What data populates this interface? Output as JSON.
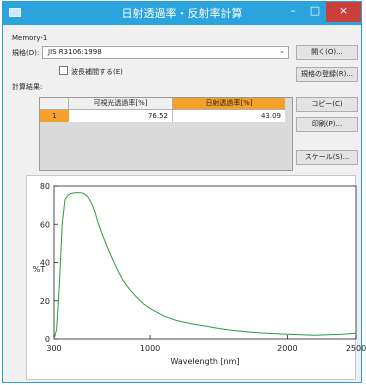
{
  "window": {
    "title": "日射透過率・反射率計算",
    "controls": {
      "minimize": "–",
      "maximize": "□",
      "close": "×"
    }
  },
  "memory_label": "Memory-1",
  "spec": {
    "label": "規格(D):",
    "value": "JIS R3106:1998"
  },
  "checkbox": {
    "label": "波長補間する(E)",
    "checked": false
  },
  "results_label": "計算結果:",
  "table": {
    "columns": [
      "可視光透過率[%]",
      "日射透過率[%]"
    ],
    "rows": [
      {
        "index": "1",
        "values": [
          "76.52",
          "43.09"
        ]
      }
    ]
  },
  "buttons": {
    "load": "開く(O)...",
    "register": "規格の登録(R)...",
    "copy": "コピー(C)",
    "print": "印刷(P)...",
    "scale": "スケール(S)..."
  },
  "chart_data": {
    "type": "line",
    "xlabel": "Wavelength [nm]",
    "ylabel": "%T",
    "xlim": [
      300,
      2500
    ],
    "ylim": [
      0,
      80
    ],
    "x_ticks": [
      300,
      1000,
      2000,
      2500
    ],
    "y_ticks": [
      0,
      20,
      40,
      60,
      80
    ],
    "color": "#2e9a3c",
    "series": [
      {
        "x": [
          300,
          320,
          340,
          360,
          380,
          400,
          420,
          450,
          480,
          500,
          520,
          550,
          580,
          600,
          620,
          650,
          700,
          750,
          800,
          850,
          900,
          950,
          1000,
          1100,
          1200,
          1300,
          1400,
          1500,
          1600,
          1700,
          1800,
          1900,
          2000,
          2100,
          2200,
          2300,
          2400,
          2500
        ],
        "y": [
          0,
          5,
          30,
          60,
          73,
          75,
          76,
          76.5,
          76.5,
          76.5,
          76,
          74,
          70,
          66,
          61,
          55,
          46,
          38,
          31,
          26,
          22,
          18.5,
          16,
          12,
          9.5,
          8,
          6.8,
          5.5,
          4.5,
          3.8,
          3.2,
          2.8,
          2.5,
          2.2,
          2.0,
          2.2,
          2.5,
          3.0
        ]
      }
    ]
  }
}
